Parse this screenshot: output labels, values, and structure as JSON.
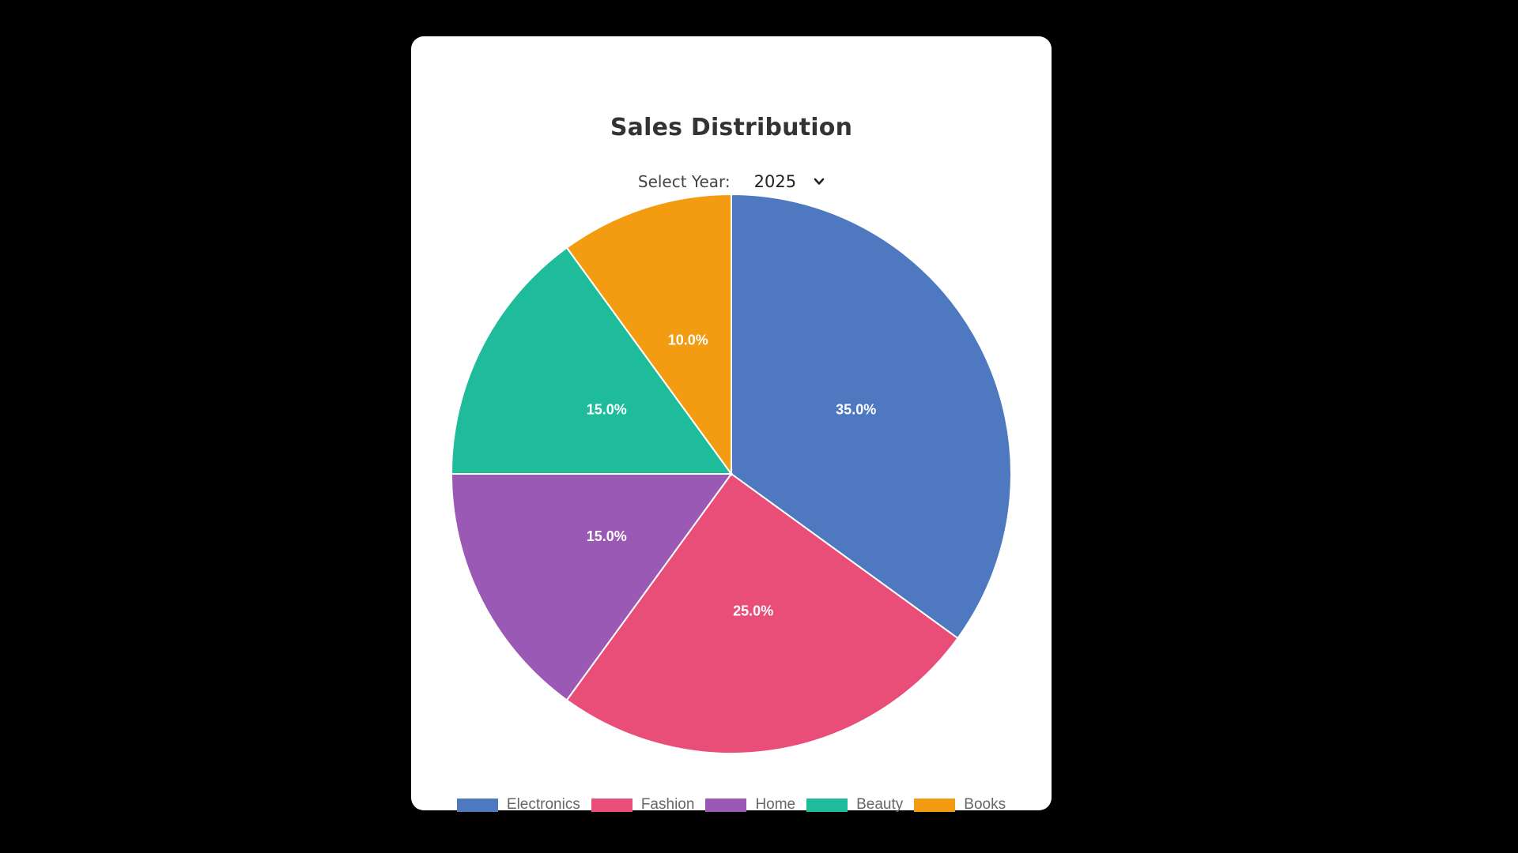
{
  "card": {
    "title": "Sales Distribution",
    "year_label": "Select Year:",
    "year_value": "2025",
    "chevron_icon": "chevron-down-icon"
  },
  "chart_data": {
    "type": "pie",
    "title": "Sales Distribution",
    "categories": [
      "Electronics",
      "Fashion",
      "Home",
      "Beauty",
      "Books"
    ],
    "values": [
      35.0,
      25.0,
      15.0,
      15.0,
      10.0
    ],
    "labels": [
      "35.0%",
      "25.0%",
      "15.0%",
      "15.0%",
      "10.0%"
    ],
    "colors": [
      "#4e78c0",
      "#e84e78",
      "#9b59b6",
      "#1fbc9c",
      "#f39c12"
    ],
    "legend_position": "bottom",
    "start_angle": "top, clockwise"
  }
}
